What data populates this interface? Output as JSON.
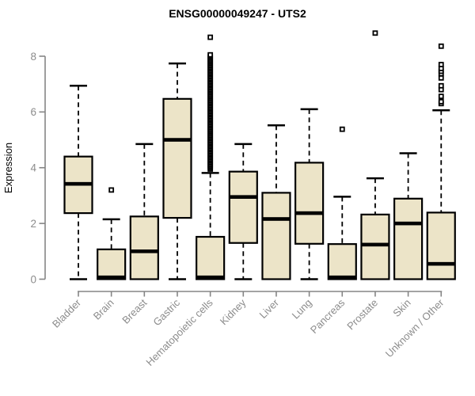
{
  "colors": {
    "box_fill": "#ECE4C8",
    "box_border": "#000000",
    "median": "#000000",
    "whisker": "#000000",
    "outlier_stroke": "#000000",
    "outlier_fill": "#ffffff",
    "axis": "#858585",
    "tick_text": "#8C8C8C",
    "title": "#000000",
    "background": "#ffffff"
  },
  "chart_data": {
    "type": "boxplot",
    "title": "ENSG00000049247 - UTS2",
    "xlabel": "",
    "ylabel": "Expression",
    "ylim": [
      0,
      8.9
    ],
    "yticks": [
      0,
      2,
      4,
      6,
      8
    ],
    "grid": false,
    "legend": "none",
    "categories": [
      "Bladder",
      "Brain",
      "Breast",
      "Gastric",
      "Hematopoietic cells",
      "Kidney",
      "Liver",
      "Lung",
      "Pancreas",
      "Prostate",
      "Skin",
      "Unknown / Other"
    ],
    "series": [
      {
        "name": "Bladder",
        "whisker_low": 0,
        "q1": 2.37,
        "median": 3.42,
        "q3": 4.4,
        "whisker_high": 6.94,
        "outliers": []
      },
      {
        "name": "Brain",
        "whisker_low": 0,
        "q1": 0,
        "median": 0.05,
        "q3": 1.07,
        "whisker_high": 2.15,
        "outliers": [
          3.2
        ]
      },
      {
        "name": "Breast",
        "whisker_low": 0,
        "q1": 0,
        "median": 1.0,
        "q3": 2.25,
        "whisker_high": 4.85,
        "outliers": []
      },
      {
        "name": "Gastric",
        "whisker_low": 0,
        "q1": 2.2,
        "median": 5.0,
        "q3": 6.47,
        "whisker_high": 7.74,
        "outliers": []
      },
      {
        "name": "Hematopoietic cells",
        "whisker_low": 0,
        "q1": 0,
        "median": 0.05,
        "q3": 1.52,
        "whisker_high": 3.81,
        "outliers": [
          3.95,
          4.0,
          4.05,
          4.1,
          4.15,
          4.2,
          4.25,
          4.3,
          4.35,
          4.4,
          4.45,
          4.5,
          4.55,
          4.6,
          4.65,
          4.7,
          4.75,
          4.8,
          4.85,
          4.9,
          4.95,
          5.0,
          5.05,
          5.1,
          5.15,
          5.2,
          5.25,
          5.3,
          5.35,
          5.4,
          5.45,
          5.5,
          5.55,
          5.6,
          5.65,
          5.7,
          5.75,
          5.8,
          5.85,
          5.9,
          5.95,
          6.0,
          6.05,
          6.1,
          6.15,
          6.2,
          6.25,
          6.3,
          6.35,
          6.4,
          6.45,
          6.5,
          6.55,
          6.6,
          6.65,
          6.7,
          6.75,
          6.8,
          6.85,
          6.9,
          6.95,
          7.0,
          7.05,
          7.1,
          7.15,
          7.2,
          7.25,
          7.3,
          7.35,
          7.4,
          7.45,
          7.5,
          7.55,
          7.6,
          7.65,
          7.7,
          7.75,
          7.8,
          7.85,
          7.9,
          7.95,
          8.0,
          8.05,
          8.68
        ]
      },
      {
        "name": "Kidney",
        "whisker_low": 0,
        "q1": 1.3,
        "median": 2.95,
        "q3": 3.86,
        "whisker_high": 4.85,
        "outliers": []
      },
      {
        "name": "Liver",
        "whisker_low": 0,
        "q1": 0,
        "median": 2.16,
        "q3": 3.1,
        "whisker_high": 5.52,
        "outliers": []
      },
      {
        "name": "Lung",
        "whisker_low": 0,
        "q1": 1.27,
        "median": 2.37,
        "q3": 4.18,
        "whisker_high": 6.1,
        "outliers": []
      },
      {
        "name": "Pancreas",
        "whisker_low": 0,
        "q1": 0,
        "median": 0.05,
        "q3": 1.26,
        "whisker_high": 2.96,
        "outliers": [
          5.38
        ]
      },
      {
        "name": "Prostate",
        "whisker_low": 0,
        "q1": 0,
        "median": 1.24,
        "q3": 2.32,
        "whisker_high": 3.62,
        "outliers": [
          8.83
        ]
      },
      {
        "name": "Skin",
        "whisker_low": 0,
        "q1": 0,
        "median": 2.0,
        "q3": 2.89,
        "whisker_high": 4.52,
        "outliers": []
      },
      {
        "name": "Unknown / Other",
        "whisker_low": 0,
        "q1": 0,
        "median": 0.55,
        "q3": 2.39,
        "whisker_high": 6.06,
        "outliers": [
          6.3,
          6.37,
          6.56,
          6.8,
          6.94,
          7.22,
          7.37,
          7.46,
          7.56,
          7.7,
          8.36
        ]
      }
    ]
  }
}
